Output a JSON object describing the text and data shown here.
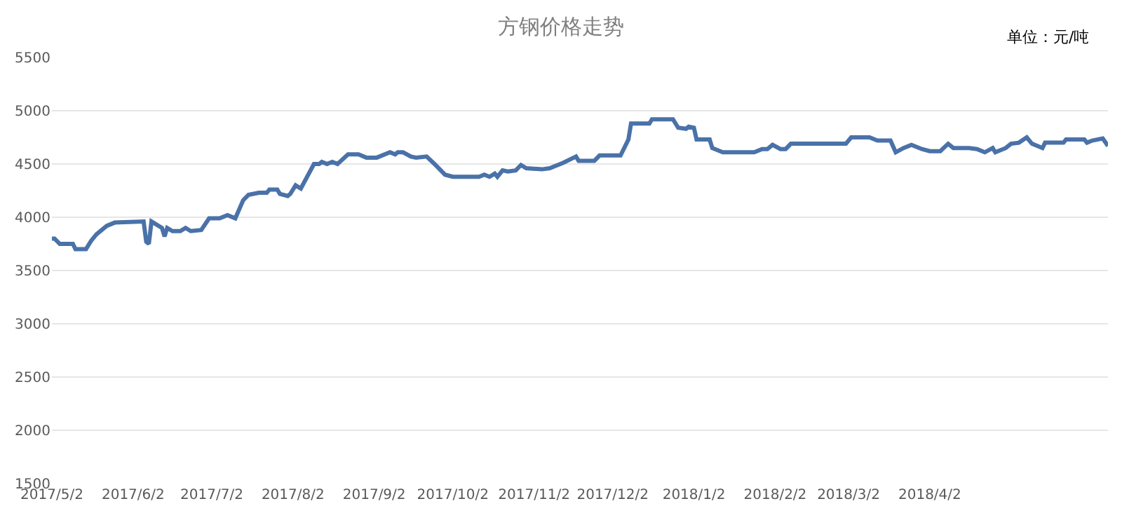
{
  "chart_data": {
    "type": "line",
    "title": "方钢价格走势",
    "annotations": [
      "单位：元/吨"
    ],
    "x": [
      "2017-05-02",
      "2017-05-03",
      "2017-05-05",
      "2017-05-10",
      "2017-05-11",
      "2017-05-15",
      "2017-05-17",
      "2017-05-19",
      "2017-05-22",
      "2017-05-23",
      "2017-05-26",
      "2017-06-06",
      "2017-06-07",
      "2017-06-08",
      "2017-06-09",
      "2017-06-13",
      "2017-06-14",
      "2017-06-15",
      "2017-06-17",
      "2017-06-20",
      "2017-06-22",
      "2017-06-24",
      "2017-06-28",
      "2017-07-01",
      "2017-07-05",
      "2017-07-08",
      "2017-07-11",
      "2017-07-14",
      "2017-07-16",
      "2017-07-20",
      "2017-07-23",
      "2017-07-24",
      "2017-07-27",
      "2017-07-28",
      "2017-07-31",
      "2017-08-01",
      "2017-08-03",
      "2017-08-05",
      "2017-08-10",
      "2017-08-12",
      "2017-08-13",
      "2017-08-15",
      "2017-08-17",
      "2017-08-19",
      "2017-08-23",
      "2017-08-27",
      "2017-08-30",
      "2017-09-03",
      "2017-09-08",
      "2017-09-10",
      "2017-09-11",
      "2017-09-13",
      "2017-09-16",
      "2017-09-18",
      "2017-09-22",
      "2017-09-25",
      "2017-09-29",
      "2017-10-02",
      "2017-10-12",
      "2017-10-14",
      "2017-10-16",
      "2017-10-18",
      "2017-10-19",
      "2017-10-21",
      "2017-10-23",
      "2017-10-26",
      "2017-10-28",
      "2017-10-30",
      "2017-11-05",
      "2017-11-08",
      "2017-11-10",
      "2017-11-13",
      "2017-11-18",
      "2017-11-19",
      "2017-11-25",
      "2017-11-27",
      "2017-12-05",
      "2017-12-08",
      "2017-12-09",
      "2017-12-16",
      "2017-12-17",
      "2017-12-25",
      "2017-12-27",
      "2017-12-30",
      "2017-12-31",
      "2018-01-02",
      "2018-01-03",
      "2018-01-08",
      "2018-01-09",
      "2018-01-13",
      "2018-01-16",
      "2018-01-25",
      "2018-01-28",
      "2018-01-30",
      "2018-02-01",
      "2018-02-04",
      "2018-02-06",
      "2018-02-08",
      "2018-03-01",
      "2018-03-03",
      "2018-03-10",
      "2018-03-13",
      "2018-03-18",
      "2018-03-20",
      "2018-03-23",
      "2018-03-26",
      "2018-03-30",
      "2018-04-02",
      "2018-04-06",
      "2018-04-09",
      "2018-04-11",
      "2018-04-17",
      "2018-04-20",
      "2018-04-23",
      "2018-04-26",
      "2018-04-27",
      "2018-05-01",
      "2018-05-03",
      "2018-05-06",
      "2018-05-09",
      "2018-05-11",
      "2018-05-15",
      "2018-05-16",
      "2018-05-23",
      "2018-05-24",
      "2018-05-31",
      "2018-06-01",
      "2018-06-03",
      "2018-06-07",
      "2018-06-09"
    ],
    "series": [
      {
        "color": "#4a72a8",
        "values": [
          3800,
          3800,
          3750,
          3750,
          3700,
          3700,
          3780,
          3840,
          3900,
          3920,
          3950,
          3960,
          3770,
          3750,
          3960,
          3900,
          3820,
          3900,
          3870,
          3870,
          3900,
          3870,
          3880,
          3990,
          3990,
          4020,
          3990,
          4160,
          4210,
          4230,
          4230,
          4260,
          4260,
          4220,
          4200,
          4220,
          4300,
          4270,
          4500,
          4500,
          4520,
          4500,
          4520,
          4500,
          4590,
          4590,
          4560,
          4560,
          4610,
          4590,
          4610,
          4610,
          4570,
          4560,
          4570,
          4500,
          4400,
          4380,
          4380,
          4400,
          4380,
          4410,
          4380,
          4440,
          4430,
          4440,
          4490,
          4460,
          4450,
          4460,
          4480,
          4510,
          4570,
          4530,
          4530,
          4580,
          4580,
          4730,
          4880,
          4880,
          4920,
          4920,
          4840,
          4830,
          4850,
          4840,
          4730,
          4730,
          4650,
          4610,
          4610,
          4610,
          4640,
          4640,
          4680,
          4640,
          4640,
          4690,
          4690,
          4750,
          4750,
          4720,
          4720,
          4610,
          4650,
          4680,
          4640,
          4620,
          4620,
          4690,
          4650,
          4650,
          4640,
          4610,
          4650,
          4610,
          4650,
          4690,
          4700,
          4750,
          4690,
          4650,
          4700,
          4700,
          4730,
          4730,
          4700,
          4720,
          4740,
          4670
        ]
      }
    ],
    "xlim": [
      "2017-05-02",
      "2018-06-09"
    ],
    "xticks": [
      {
        "value": "2017-05-02",
        "label": "2017/5/2"
      },
      {
        "value": "2017-06-02",
        "label": "2017/6/2"
      },
      {
        "value": "2017-07-02",
        "label": "2017/7/2"
      },
      {
        "value": "2017-08-02",
        "label": "2017/8/2"
      },
      {
        "value": "2017-09-02",
        "label": "2017/9/2"
      },
      {
        "value": "2017-10-02",
        "label": "2017/10/2"
      },
      {
        "value": "2017-11-02",
        "label": "2017/11/2"
      },
      {
        "value": "2017-12-02",
        "label": "2017/12/2"
      },
      {
        "value": "2018-01-02",
        "label": "2018/1/2"
      },
      {
        "value": "2018-02-02",
        "label": "2018/2/2"
      },
      {
        "value": "2018-03-02",
        "label": "2018/3/2"
      },
      {
        "value": "2018-04-02",
        "label": "2018/4/2"
      }
    ],
    "ylim": [
      1500,
      5500
    ],
    "yticks": [
      1500,
      2000,
      2500,
      3000,
      3500,
      4000,
      4500,
      5000,
      5500
    ],
    "grid": "y",
    "marker": "none",
    "line_style": "solid"
  }
}
